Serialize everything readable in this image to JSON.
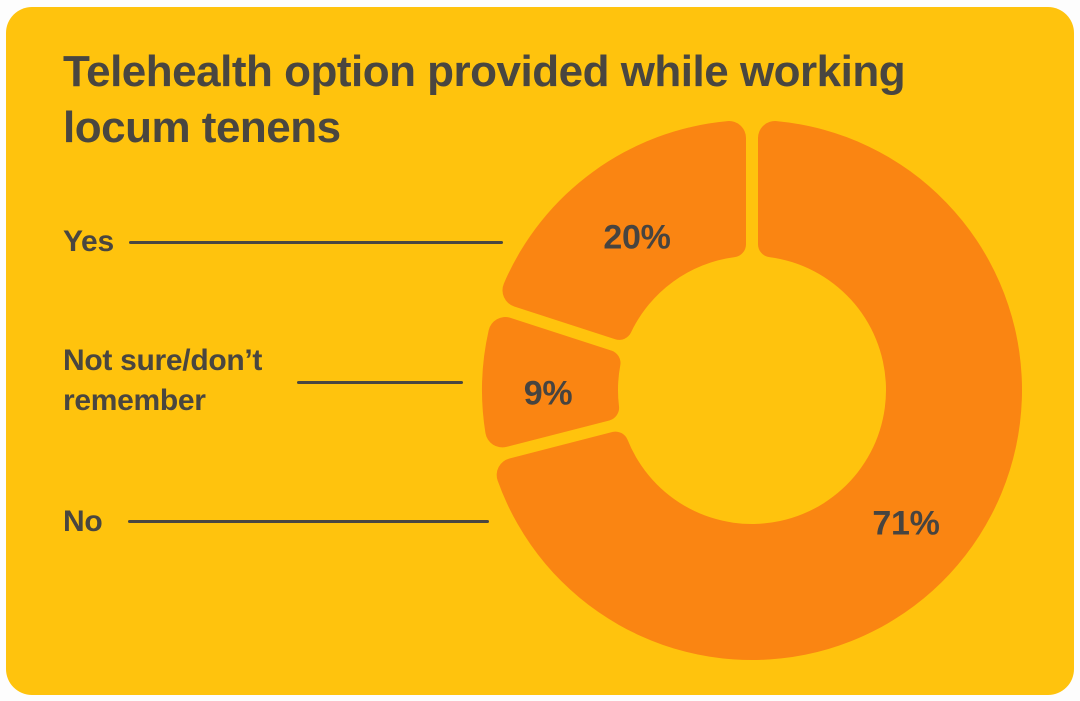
{
  "card": {
    "background": "#FFC30D",
    "frame_color": "#FDFDFD"
  },
  "chart_data": {
    "type": "donut",
    "title": "Telehealth option provided while working locum tenens",
    "title_lines": [
      "Telehealth option provided while working",
      "locum tenens"
    ],
    "unit": "percent",
    "start": "top",
    "direction": "counterclockwise",
    "legend_position": "left",
    "segment_color": "#FA8512",
    "text_color": "#494640",
    "leader_line_color": "#4A4741",
    "segments": [
      {
        "label": "Yes",
        "value": 20,
        "display": "20%"
      },
      {
        "label": "Not sure/don’t remember",
        "value": 9,
        "display": "9%"
      },
      {
        "label": "No",
        "value": 71,
        "display": "71%"
      }
    ]
  }
}
